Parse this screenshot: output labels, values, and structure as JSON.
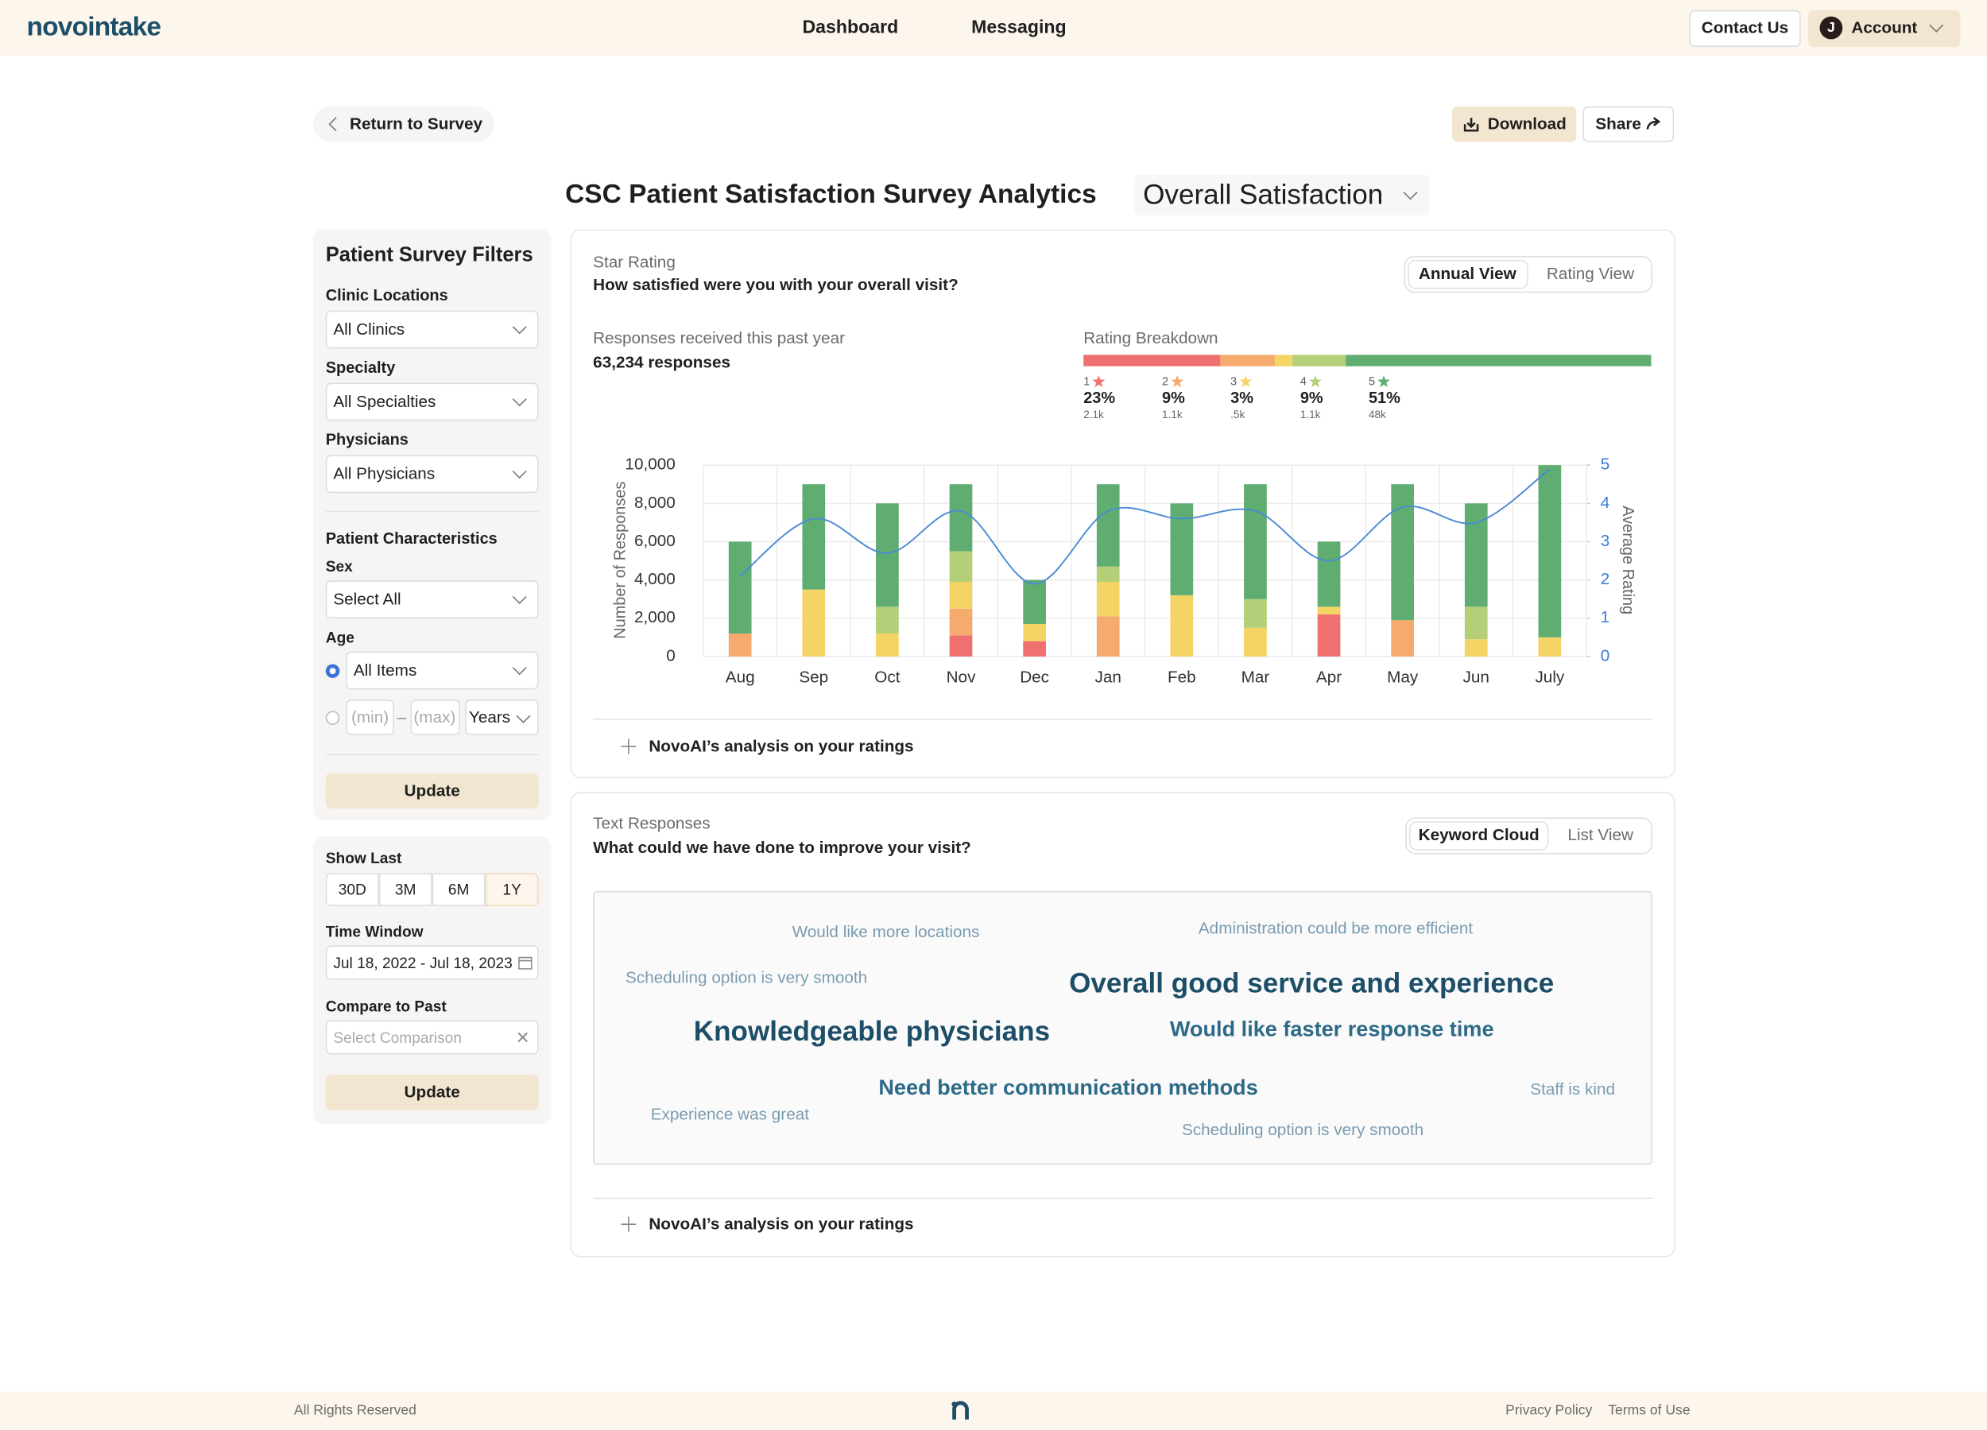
{
  "nav": {
    "logo": "novointake",
    "links": [
      "Dashboard",
      "Messaging"
    ],
    "contact": "Contact Us",
    "avatar": "J",
    "account": "Account"
  },
  "toolbar": {
    "back": "Return to Survey",
    "download": "Download",
    "share": "Share"
  },
  "page_title": "CSC Patient Satisfaction Survey Analytics",
  "metric_select": "Overall Satisfaction",
  "filters": {
    "title": "Patient Survey Filters",
    "clinic_label": "Clinic Locations",
    "clinic": "All Clinics",
    "specialty_label": "Specialty",
    "specialty": "All Specialties",
    "physicians_label": "Physicians",
    "physicians": "All Physicians",
    "characteristics": "Patient Characteristics",
    "sex_label": "Sex",
    "sex": "Select All",
    "age_label": "Age",
    "age": "All Items",
    "min": "(min)",
    "dash": "–",
    "max": "(max)",
    "unit": "Years",
    "update": "Update"
  },
  "time": {
    "show_last": "Show Last",
    "ranges": [
      "30D",
      "3M",
      "6M",
      "1Y"
    ],
    "window_label": "Time Window",
    "window": "Jul 18, 2022 - Jul 18, 2023",
    "compare_label": "Compare to Past",
    "compare": "Select Comparison",
    "update": "Update"
  },
  "star_card": {
    "kicker": "Star Rating",
    "question": "How satisfied were you with your overall visit?",
    "views": [
      "Annual View",
      "Rating View"
    ],
    "responses_label": "Responses received this past year",
    "responses": "63,234 responses",
    "breakdown_title": "Rating Breakdown",
    "analysis": "NovoAI’s analysis on your ratings"
  },
  "rating_breakdown": {
    "ratings": [
      "1",
      "2",
      "3",
      "4",
      "5"
    ],
    "values": [
      23,
      9,
      3,
      9,
      51
    ],
    "value_labels": [
      "23%",
      "9%",
      "3%",
      "9%",
      "51%"
    ],
    "counts": [
      "2.1k",
      "1.1k",
      ".5k",
      "1.1k",
      "48k"
    ],
    "colors": [
      "#f07070",
      "#f5aa6e",
      "#f5d466",
      "#b4cf78",
      "#5fad70"
    ]
  },
  "chart_data": {
    "type": "bar",
    "stacked": true,
    "categories": [
      "Aug",
      "Sep",
      "Oct",
      "Nov",
      "Dec",
      "Jan",
      "Feb",
      "Mar",
      "Apr",
      "May",
      "Jun",
      "July"
    ],
    "series": [
      {
        "color": "#f07070",
        "values": [
          0,
          0,
          0,
          1100,
          800,
          0,
          0,
          0,
          2200,
          0,
          0,
          0
        ]
      },
      {
        "color": "#f5aa6e",
        "values": [
          1200,
          0,
          0,
          1400,
          0,
          2100,
          0,
          0,
          0,
          1900,
          0,
          0
        ]
      },
      {
        "color": "#f5d466",
        "values": [
          0,
          3500,
          1200,
          1400,
          900,
          1800,
          3200,
          1500,
          400,
          0,
          900,
          1000
        ]
      },
      {
        "color": "#b4cf78",
        "values": [
          0,
          0,
          1400,
          1600,
          0,
          800,
          0,
          1500,
          0,
          0,
          1700,
          0
        ]
      },
      {
        "color": "#5fad70",
        "values": [
          4800,
          5500,
          5400,
          3500,
          2300,
          4300,
          4800,
          6000,
          3400,
          7100,
          5400,
          9000
        ]
      },
      {
        "color": "#4a8ad6",
        "axis": "y2",
        "values": [
          2.1,
          3.6,
          2.7,
          3.8,
          1.9,
          3.8,
          3.6,
          3.8,
          2.5,
          3.9,
          3.5,
          4.9
        ]
      }
    ],
    "ylabel": "Number of Responses",
    "y2label": "Average Rating",
    "ylim": [
      0,
      10000
    ],
    "yticks": [
      0,
      {
        "value": 2000,
        "label": "2,000"
      },
      {
        "value": 4000,
        "label": "4,000"
      },
      {
        "value": 6000,
        "label": "6,000"
      },
      {
        "value": 8000,
        "label": "8,000"
      },
      {
        "value": 10000,
        "label": "10,000"
      }
    ],
    "y2lim": [
      0,
      5
    ],
    "y2ticks": [
      0,
      1,
      2,
      3,
      4,
      5
    ],
    "grid": true
  },
  "text_card": {
    "kicker": "Text Responses",
    "question": "What could we have done to improve your visit?",
    "views": [
      "Keyword Cloud",
      "List View"
    ],
    "keywords": [
      "Would like more locations",
      "Administration could be more efficient",
      "Scheduling option is very smooth",
      "Overall good service and experience",
      "Knowledgeable physicians",
      "Would like faster response time",
      "Need better communication methods",
      "Staff is kind",
      "Experience was great",
      "Scheduling option is very smooth"
    ],
    "analysis": "NovoAI’s analysis on your ratings"
  },
  "footer": {
    "rights": "All Rights Reserved",
    "privacy": "Privacy Policy",
    "terms": "Terms of Use"
  }
}
